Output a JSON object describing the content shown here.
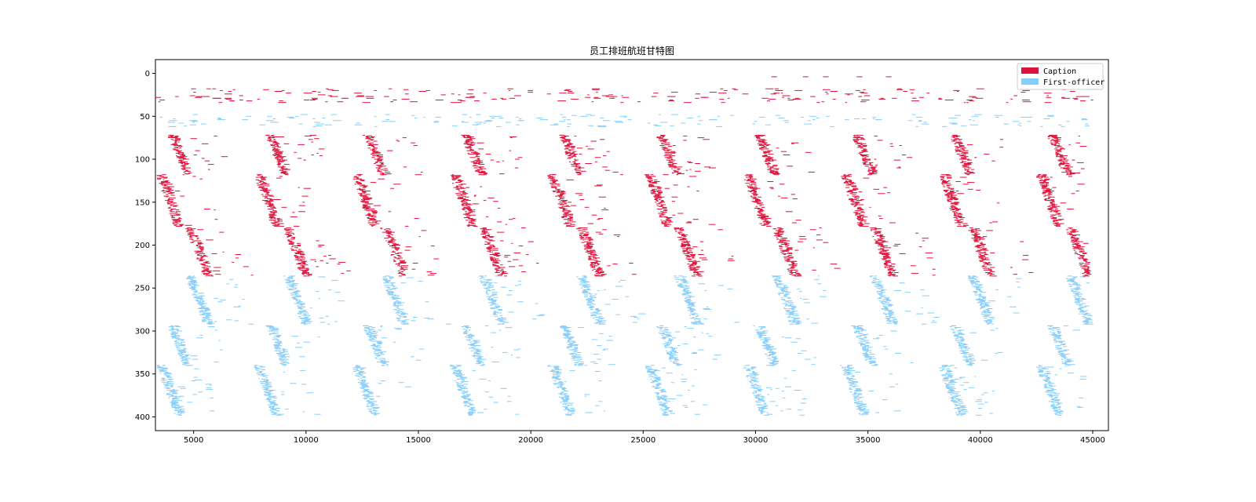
{
  "chart_data": {
    "type": "gantt",
    "title": "员工排班航班甘特图",
    "xlabel": "",
    "ylabel": "",
    "xlim": [
      3300,
      45700
    ],
    "ylim": [
      416,
      -16
    ],
    "y_inverted": true,
    "x_ticks": [
      5000,
      10000,
      15000,
      20000,
      25000,
      30000,
      35000,
      40000,
      45000
    ],
    "y_ticks": [
      0,
      50,
      100,
      150,
      200,
      250,
      300,
      350,
      400
    ],
    "grid": false,
    "legend_position": "top-right",
    "series": [
      {
        "name": "Caption",
        "color": "#dc143c",
        "role_rows": [
          {
            "rows": [
              18,
              34
            ],
            "start": 3300,
            "end": 45000,
            "kind": "header"
          },
          {
            "rows": [
              72,
              118
            ],
            "start": 3800,
            "end": 44500,
            "kind": "wave-a"
          },
          {
            "rows": [
              118,
              178
            ],
            "start": 3300,
            "end": 44500,
            "kind": "wave-b"
          },
          {
            "rows": [
              180,
              236
            ],
            "start": 4600,
            "end": 44800,
            "kind": "wave-c"
          }
        ]
      },
      {
        "name": "First-officer",
        "color": "#87cefa",
        "role_rows": [
          {
            "rows": [
              48,
              62
            ],
            "start": 3300,
            "end": 45000,
            "kind": "header"
          },
          {
            "rows": [
              236,
              292
            ],
            "start": 4600,
            "end": 44800,
            "kind": "wave-c"
          },
          {
            "rows": [
              294,
              340
            ],
            "start": 3800,
            "end": 44500,
            "kind": "wave-a"
          },
          {
            "rows": [
              340,
              398
            ],
            "start": 3300,
            "end": 44500,
            "kind": "wave-b"
          }
        ]
      }
    ],
    "top_extra_segments": [
      {
        "y": 4,
        "x": 30700
      },
      {
        "y": 4,
        "x": 32100
      },
      {
        "y": 4,
        "x": 33000
      },
      {
        "y": 4,
        "x": 34500
      },
      {
        "y": 4,
        "x": 35800
      }
    ]
  }
}
